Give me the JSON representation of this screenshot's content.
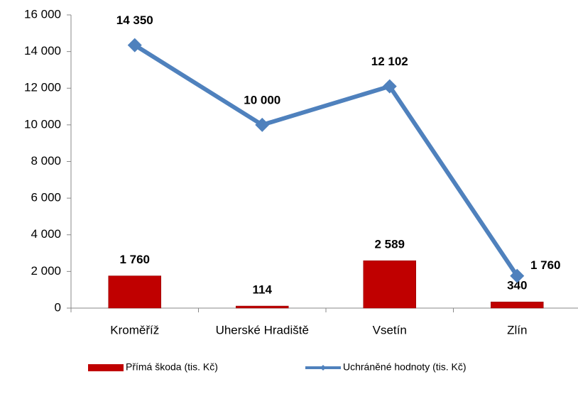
{
  "chart_data": {
    "type": "bar",
    "categories": [
      "Kroměříž",
      "Uherské Hradiště",
      "Vsetín",
      "Zlín"
    ],
    "series": [
      {
        "name": "Přímá škoda (tis. Kč)",
        "type": "bar",
        "color": "#c00000",
        "values": [
          1760,
          114,
          2589,
          340
        ],
        "value_labels": [
          "1 760",
          "114",
          "2 589",
          "340"
        ]
      },
      {
        "name": "Uchráněné hodnoty (tis. Kč)",
        "type": "line",
        "color": "#4f81bd",
        "values": [
          14350,
          10000,
          12102,
          1760
        ],
        "value_labels": [
          "14 350",
          "10 000",
          "12 102",
          "1 760"
        ]
      }
    ],
    "ylim": [
      0,
      16000
    ],
    "yticks": [
      0,
      {
        "value": 2000,
        "label": "2 000"
      },
      {
        "value": 4000,
        "label": "4 000"
      },
      {
        "value": 6000,
        "label": "6 000"
      },
      {
        "value": 8000,
        "label": "8 000"
      },
      {
        "value": 10000,
        "label": "10 000"
      },
      {
        "value": 12000,
        "label": "12 000"
      },
      {
        "value": 14000,
        "label": "14 000"
      },
      {
        "value": 16000,
        "label": "16 000"
      }
    ],
    "grid": false,
    "legend": "bottom"
  }
}
